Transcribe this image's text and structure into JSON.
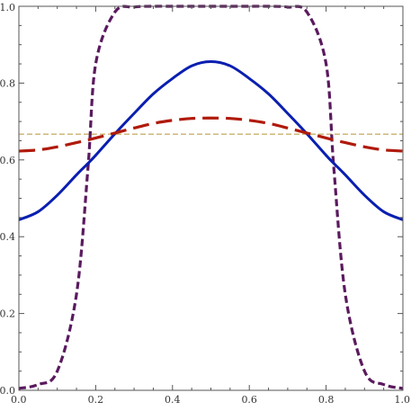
{
  "chart_data": {
    "type": "line",
    "title": "",
    "xlabel": "",
    "ylabel": "",
    "xlim": [
      0,
      1
    ],
    "ylim": [
      0,
      1
    ],
    "grid": false,
    "legend": "none",
    "x_ticks": [
      {
        "value": 0.0,
        "label": "0.0"
      },
      {
        "value": 0.2,
        "label": "0.2"
      },
      {
        "value": 0.4,
        "label": "0.4"
      },
      {
        "value": 0.6,
        "label": "0.6"
      },
      {
        "value": 0.8,
        "label": "0.8"
      },
      {
        "value": 1.0,
        "label": "1.0"
      }
    ],
    "y_ticks": [
      {
        "value": 0.0,
        "label": "0.0"
      },
      {
        "value": 0.2,
        "label": "0.2"
      },
      {
        "value": 0.4,
        "label": "0.4"
      },
      {
        "value": 0.6,
        "label": "0.6"
      },
      {
        "value": 0.8,
        "label": "0.8"
      },
      {
        "value": 1.0,
        "label": "1.0"
      }
    ],
    "x": [
      0.0,
      0.05,
      0.1,
      0.15,
      0.18,
      0.2,
      0.25,
      0.3,
      0.35,
      0.4,
      0.45,
      0.5,
      0.55,
      0.6,
      0.65,
      0.7,
      0.75,
      0.8,
      0.82,
      0.85,
      0.9,
      0.95,
      1.0
    ],
    "series": [
      {
        "color": "#5a1a5e",
        "style": "short-dash",
        "values": [
          0.005,
          0.015,
          0.05,
          0.25,
          0.58,
          0.85,
          0.985,
          0.998,
          1.0,
          1.0,
          1.0,
          1.0,
          1.0,
          1.0,
          1.0,
          0.998,
          0.985,
          0.85,
          0.58,
          0.25,
          0.05,
          0.015,
          0.005
        ]
      },
      {
        "color": "#0a1fb0",
        "style": "solid",
        "values": [
          0.444,
          0.465,
          0.508,
          0.561,
          0.591,
          0.612,
          0.668,
          0.721,
          0.772,
          0.812,
          0.845,
          0.856,
          0.845,
          0.812,
          0.772,
          0.721,
          0.668,
          0.612,
          0.591,
          0.561,
          0.508,
          0.465,
          0.444
        ]
      },
      {
        "color": "#b01a0a",
        "style": "long-dash",
        "values": [
          0.623,
          0.626,
          0.634,
          0.645,
          0.652,
          0.657,
          0.67,
          0.683,
          0.695,
          0.703,
          0.708,
          0.709,
          0.708,
          0.703,
          0.695,
          0.683,
          0.67,
          0.657,
          0.652,
          0.645,
          0.634,
          0.626,
          0.623
        ]
      },
      {
        "color": "#c8b06e",
        "style": "fine-dash",
        "values": [
          0.667,
          0.667,
          0.667,
          0.667,
          0.667,
          0.667,
          0.667,
          0.667,
          0.667,
          0.667,
          0.667,
          0.667,
          0.667,
          0.667,
          0.667,
          0.667,
          0.667,
          0.667,
          0.667,
          0.667,
          0.667,
          0.667,
          0.667
        ]
      }
    ]
  }
}
